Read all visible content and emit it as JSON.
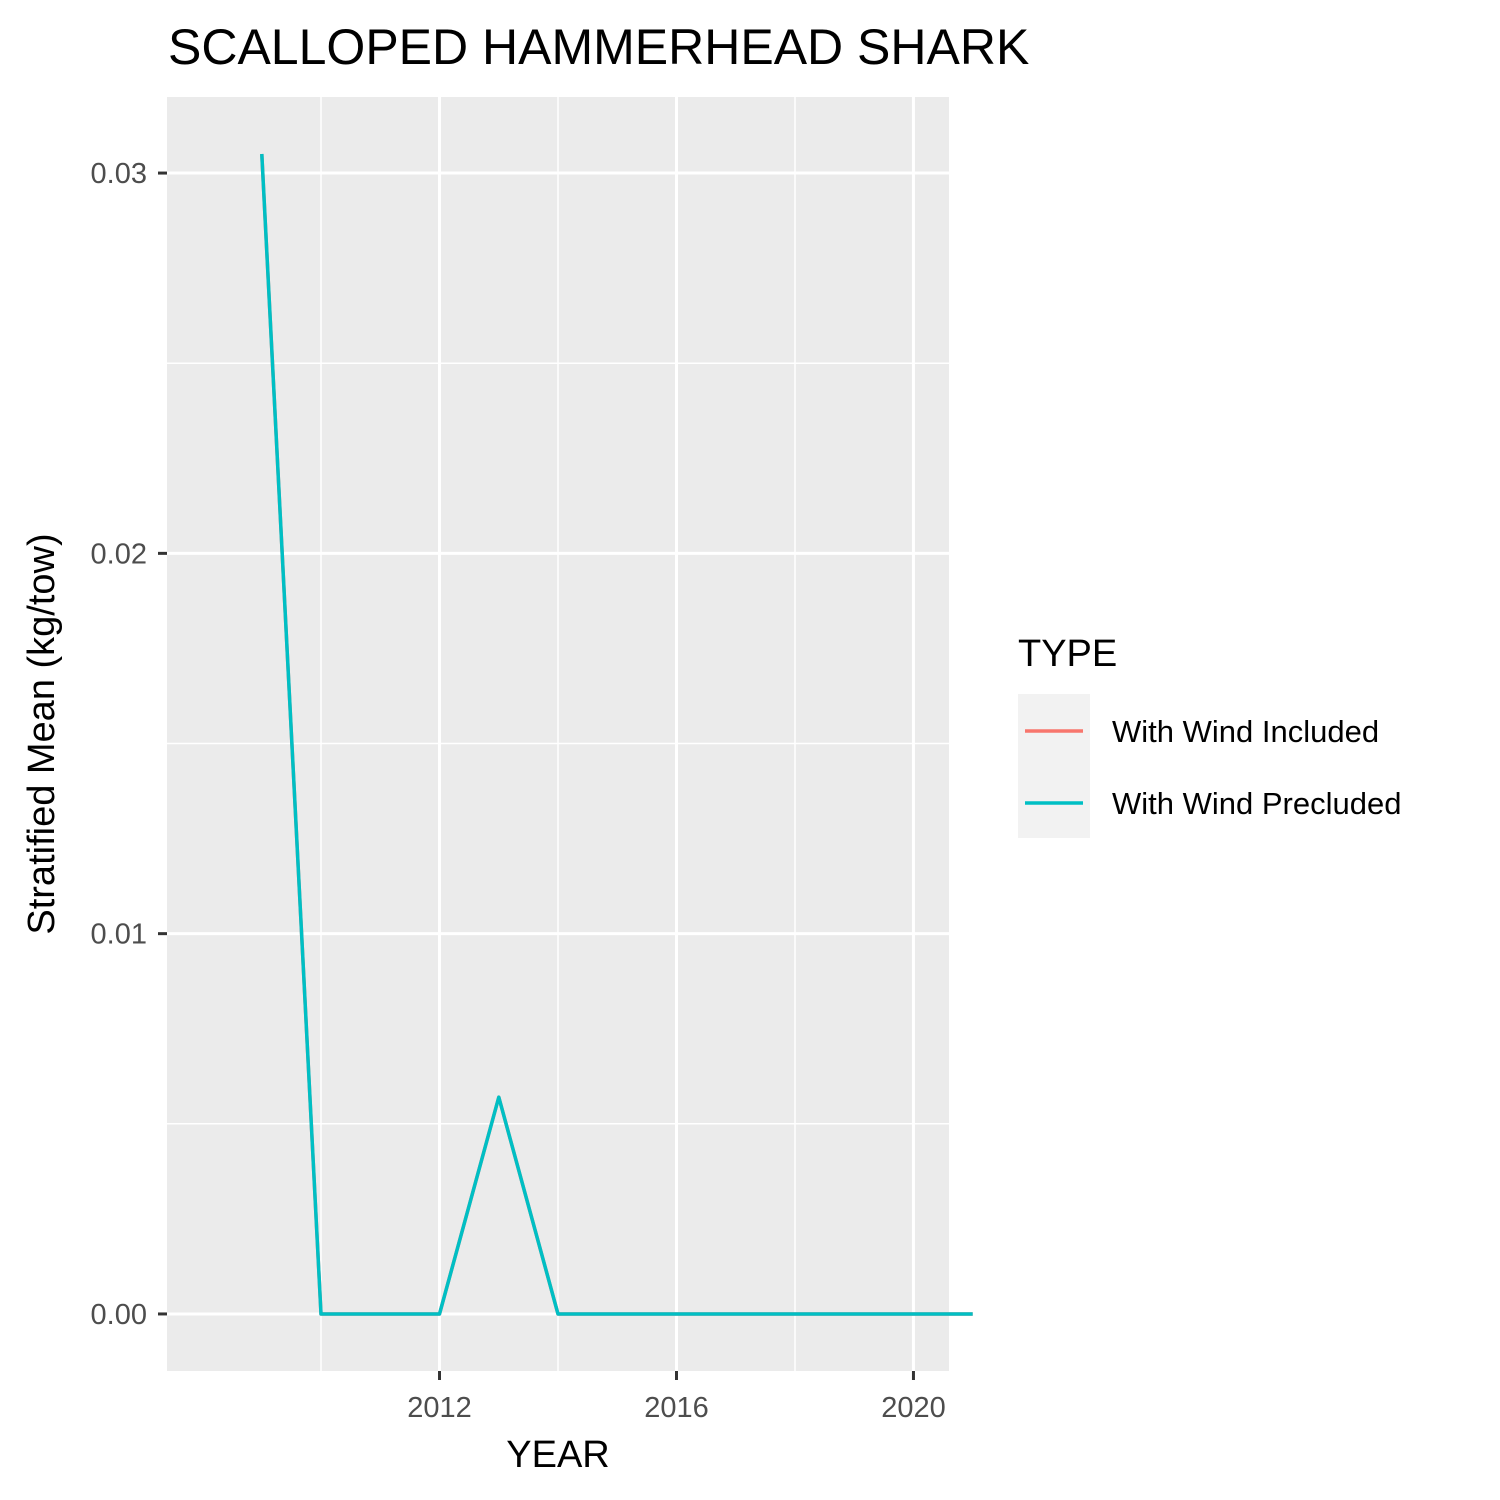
{
  "chart_data": {
    "type": "line",
    "title": "SCALLOPED HAMMERHEAD SHARK",
    "xlabel": "YEAR",
    "ylabel": "Stratified Mean (kg/tow)",
    "x": [
      2009,
      2010,
      2011,
      2012,
      2013,
      2014,
      2015,
      2016,
      2017,
      2018,
      2019,
      2020,
      2021
    ],
    "xlim": [
      2007.4,
      2020.6
    ],
    "ylim": [
      -0.0015,
      0.032
    ],
    "x_ticks": [
      2012,
      2016,
      2020
    ],
    "x_tick_labels": [
      "2012",
      "2016",
      "2020"
    ],
    "x_minor_ticks": [
      2010,
      2014,
      2018
    ],
    "y_ticks": [
      0,
      0.01,
      0.02,
      0.03
    ],
    "y_tick_labels": [
      "0.00",
      "0.01",
      "0.02",
      "0.03"
    ],
    "y_minor_ticks": [
      0.005,
      0.015,
      0.025
    ],
    "grid": true,
    "legend_title": "TYPE",
    "legend_position": "right",
    "series": [
      {
        "name": "With Wind Included",
        "color": "#F8766D",
        "values": [
          0.0305,
          0,
          0,
          0,
          0.0057,
          0,
          0,
          0,
          0,
          0,
          0,
          0,
          0
        ]
      },
      {
        "name": "With Wind Precluded",
        "color": "#00BFC4",
        "values": [
          0.0305,
          0,
          0,
          0,
          0.0057,
          0,
          0,
          0,
          0,
          0,
          0,
          0,
          0
        ]
      }
    ]
  }
}
